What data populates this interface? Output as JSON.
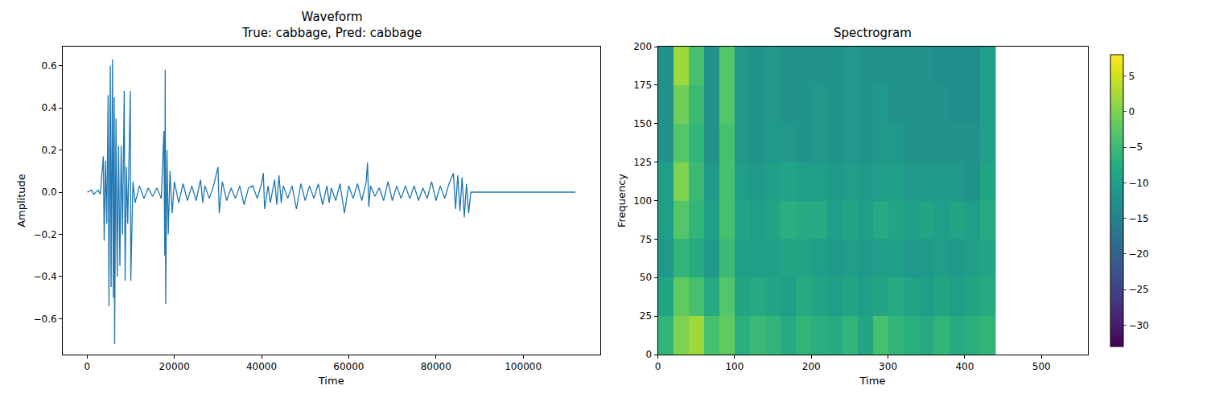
{
  "chart_data": [
    {
      "type": "line",
      "title": "Waveform",
      "subtitle": "True: cabbage, Pred: cabbage",
      "x_label": "Time",
      "y_label": "Amplitude",
      "color": "#1f77b4",
      "grid": false,
      "x": [
        0,
        1000,
        1500,
        2500,
        3000,
        3700,
        3900,
        4200,
        4500,
        4800,
        5000,
        5300,
        5500,
        5800,
        6000,
        6200,
        6300,
        6600,
        6900,
        7200,
        7500,
        7800,
        8100,
        8500,
        8700,
        9000,
        9300,
        9900,
        10000,
        10500,
        11000,
        12000,
        13000,
        14000,
        15000,
        16000,
        17000,
        17600,
        17800,
        17900,
        18000,
        18300,
        18600,
        19000,
        19500,
        20000,
        21000,
        22000,
        23000,
        24000,
        25000,
        26000,
        26500,
        27000,
        28000,
        29000,
        30000,
        30300,
        31000,
        32000,
        33000,
        34000,
        35000,
        36000,
        37000,
        38000,
        39000,
        40000,
        40400,
        40700,
        41500,
        42000,
        43000,
        43500,
        44000,
        44500,
        45000,
        46000,
        47000,
        48000,
        49000,
        50000,
        51000,
        52000,
        53000,
        54000,
        55000,
        55500,
        56000,
        57000,
        58000,
        59000,
        60000,
        61000,
        62000,
        63000,
        64000,
        64300,
        64600,
        65000,
        66000,
        67000,
        68000,
        69000,
        70000,
        71000,
        72000,
        73000,
        74000,
        75000,
        76000,
        77000,
        78000,
        79000,
        80000,
        81000,
        82000,
        83000,
        84000,
        84500,
        85000,
        85500,
        86000,
        86500,
        87000,
        87500,
        88000,
        112000
      ],
      "values": [
        0.0,
        0.01,
        -0.01,
        0.01,
        -0.01,
        0.17,
        -0.23,
        0.15,
        -0.15,
        0.46,
        -0.54,
        0.6,
        -0.45,
        0.63,
        -0.5,
        0.45,
        -0.72,
        0.35,
        -0.4,
        0.22,
        -0.35,
        0.22,
        -0.2,
        0.48,
        -0.42,
        0.12,
        -0.15,
        0.48,
        -0.42,
        0.05,
        -0.05,
        0.03,
        -0.03,
        0.02,
        -0.02,
        0.02,
        -0.03,
        0.29,
        -0.3,
        0.58,
        -0.53,
        0.2,
        -0.2,
        0.1,
        -0.1,
        0.05,
        -0.05,
        0.04,
        -0.04,
        0.03,
        -0.04,
        0.06,
        -0.05,
        0.03,
        -0.03,
        0.03,
        0.12,
        -0.1,
        0.05,
        -0.04,
        0.02,
        -0.03,
        0.03,
        -0.06,
        0.02,
        0.03,
        -0.03,
        0.04,
        0.09,
        -0.08,
        0.03,
        -0.05,
        0.06,
        -0.06,
        0.08,
        -0.05,
        0.03,
        -0.03,
        0.03,
        -0.08,
        0.04,
        -0.04,
        0.03,
        -0.03,
        0.04,
        -0.06,
        0.03,
        -0.05,
        0.02,
        -0.04,
        0.04,
        -0.1,
        0.03,
        -0.03,
        0.04,
        -0.04,
        0.05,
        0.14,
        -0.07,
        0.03,
        -0.02,
        0.02,
        -0.04,
        0.05,
        -0.04,
        0.03,
        -0.03,
        0.03,
        -0.03,
        0.03,
        -0.04,
        0.02,
        -0.03,
        0.05,
        -0.04,
        0.03,
        -0.03,
        0.04,
        0.09,
        -0.08,
        0.08,
        -0.09,
        0.07,
        -0.12,
        0.04,
        -0.1,
        0.0,
        0.0
      ],
      "xlim": [
        -5600,
        117600
      ],
      "xticks": [
        0,
        20000,
        40000,
        60000,
        80000,
        100000
      ],
      "ylim": [
        -0.77,
        0.69
      ],
      "yticks": [
        {
          "value": -0.6,
          "label": "−0.6"
        },
        {
          "value": -0.4,
          "label": "−0.4"
        },
        {
          "value": -0.2,
          "label": "−0.2"
        },
        {
          "value": 0,
          "label": "0.0"
        },
        0.2,
        0.4,
        0.6
      ]
    },
    {
      "type": "heatmap",
      "title": "Spectrogram",
      "x_label": "Time",
      "y_label": "Frequency",
      "color": "viridis",
      "grid": false,
      "x": [
        10,
        30,
        50,
        70,
        90,
        110,
        130,
        150,
        170,
        190,
        210,
        230,
        250,
        270,
        290,
        310,
        330,
        350,
        370,
        390,
        410,
        430
      ],
      "y": [
        12.5,
        37.5,
        62.5,
        87.5,
        112.5,
        137.5,
        162.5,
        187.5
      ],
      "z": [
        [
          -6,
          0,
          2,
          -4,
          -2,
          -7,
          -5,
          -6,
          -8,
          -6,
          -7,
          -8,
          -6,
          -9,
          -4,
          -6,
          -7,
          -8,
          -6,
          -8,
          -7,
          -6
        ],
        [
          -9,
          -2,
          -4,
          -8,
          -3,
          -9,
          -8,
          -9,
          -10,
          -8,
          -9,
          -10,
          -9,
          -10,
          -9,
          -8,
          -9,
          -10,
          -9,
          -10,
          -9,
          -8
        ],
        [
          -11,
          -6,
          -8,
          -11,
          -5,
          -10,
          -10,
          -10,
          -9,
          -9,
          -10,
          -11,
          -10,
          -11,
          -10,
          -10,
          -11,
          -11,
          -10,
          -11,
          -10,
          -9
        ],
        [
          -10,
          -3,
          -6,
          -10,
          -4,
          -9,
          -10,
          -9,
          -7,
          -8,
          -8,
          -10,
          -9,
          -10,
          -8,
          -9,
          -10,
          -9,
          -10,
          -9,
          -10,
          -8
        ],
        [
          -10,
          0,
          -5,
          -11,
          -4,
          -10,
          -11,
          -10,
          -9,
          -10,
          -10,
          -11,
          -10,
          -11,
          -10,
          -10,
          -11,
          -11,
          -11,
          -11,
          -12,
          -9
        ],
        [
          -12,
          -3,
          -6,
          -12,
          -4,
          -11,
          -12,
          -11,
          -11,
          -12,
          -11,
          -12,
          -11,
          -12,
          -11,
          -11,
          -12,
          -12,
          -12,
          -12,
          -12,
          -10
        ],
        [
          -12,
          -1,
          -5,
          -12,
          -3,
          -11,
          -12,
          -11,
          -12,
          -12,
          -11,
          -12,
          -11,
          -12,
          -11,
          -12,
          -12,
          -12,
          -12,
          -13,
          -13,
          -10
        ],
        [
          -12,
          2,
          -4,
          -12,
          -3,
          -11,
          -12,
          -11,
          -12,
          -12,
          -12,
          -12,
          -11,
          -12,
          -12,
          -12,
          -12,
          -12,
          -13,
          -13,
          -13,
          -10
        ]
      ],
      "xlim": [
        0,
        560
      ],
      "xticks": [
        0,
        100,
        200,
        300,
        400,
        500
      ],
      "ylim": [
        0,
        200
      ],
      "yticks": [
        0,
        25,
        50,
        75,
        100,
        125,
        150,
        175,
        200
      ],
      "colorbar": {
        "range": [
          -33,
          8
        ],
        "ticks": [
          {
            "value": -30,
            "label": "−30"
          },
          {
            "value": -25,
            "label": "−25"
          },
          {
            "value": -20,
            "label": "−20"
          },
          {
            "value": -15,
            "label": "−15"
          },
          {
            "value": -10,
            "label": "−10"
          },
          {
            "value": -5,
            "label": "−5"
          },
          0,
          5
        ]
      }
    }
  ]
}
